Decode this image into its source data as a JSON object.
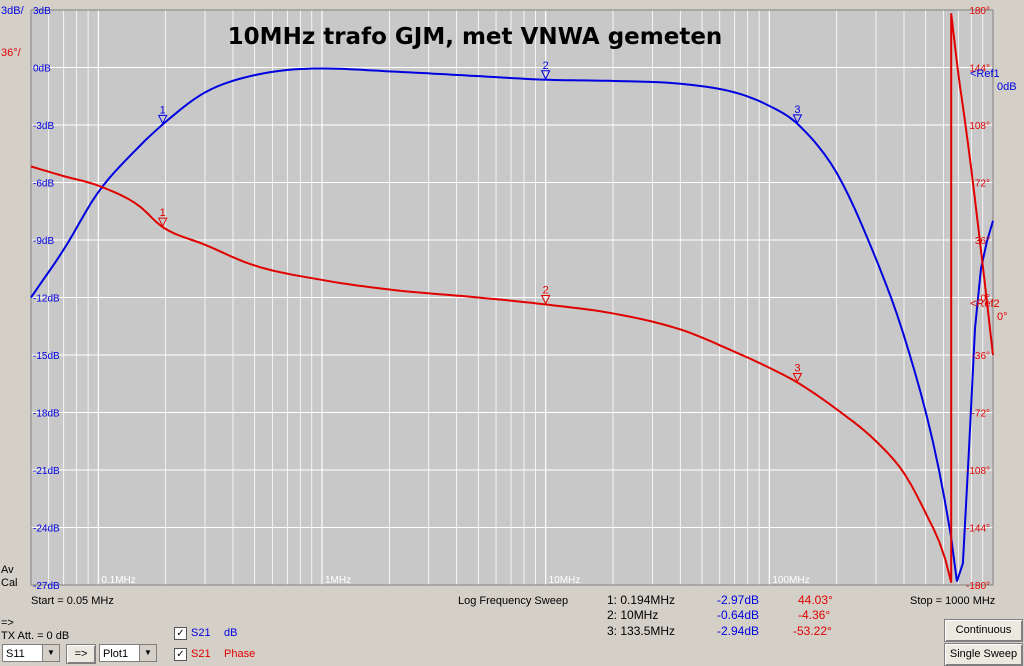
{
  "chart_data": {
    "type": "line",
    "title": "10MHz trafo GJM, met VNWA gemeten",
    "x_scale": "log",
    "xlim_mhz": [
      0.05,
      1000
    ],
    "x_ticks": [
      {
        "v": 0.1,
        "label": "0.1MHz"
      },
      {
        "v": 1,
        "label": "1MHz"
      },
      {
        "v": 10,
        "label": "10MHz"
      },
      {
        "v": 100,
        "label": "100MHz"
      }
    ],
    "left_axis": {
      "unit_label": "3dB/",
      "ylim": [
        -27,
        3
      ],
      "ticks": [
        "3dB",
        "0dB",
        "-3dB",
        "-6dB",
        "-9dB",
        "-12dB",
        "-15dB",
        "-18dB",
        "-21dB",
        "-24dB",
        "-27dB"
      ]
    },
    "right_axis": {
      "unit_label": "36°/",
      "ylim": [
        -180,
        180
      ],
      "ticks": [
        "180°",
        "144°",
        "108°",
        "72°",
        "36°",
        "0°",
        "-36°",
        "-72°",
        "-108°",
        "-144°",
        "-180°"
      ]
    },
    "ref1": {
      "label": "<Ref1",
      "value": "0dB"
    },
    "ref2": {
      "label": "<Ref2",
      "value": "0°"
    },
    "series": [
      {
        "name": "S21 dB",
        "axis": "left",
        "color": "#0000e0",
        "x": [
          0.05,
          0.07,
          0.1,
          0.15,
          0.194,
          0.3,
          0.5,
          1,
          2,
          5,
          10,
          20,
          40,
          70,
          100,
          133.5,
          200,
          300,
          400,
          550,
          650,
          700,
          750,
          800,
          850,
          900,
          1000
        ],
        "y": [
          -12,
          -9.5,
          -6.5,
          -4.2,
          -2.97,
          -1.3,
          -0.4,
          -0.05,
          -0.2,
          -0.45,
          -0.64,
          -0.7,
          -0.85,
          -1.3,
          -2,
          -2.94,
          -5.5,
          -10,
          -14,
          -20,
          -24.5,
          -27,
          -24.5,
          -17,
          -12,
          -10,
          -8
        ]
      },
      {
        "name": "S21 Phase",
        "axis": "right",
        "color": "#e00000",
        "x": [
          0.05,
          0.07,
          0.1,
          0.15,
          0.194,
          0.3,
          0.5,
          1,
          2,
          5,
          10,
          20,
          40,
          70,
          100,
          133.5,
          200,
          300,
          400,
          500,
          600,
          649,
          650,
          700,
          750,
          800,
          900,
          1000
        ],
        "y": [
          82,
          76,
          70,
          58,
          44.03,
          33,
          20,
          11,
          5,
          0,
          -4.36,
          -10,
          -20,
          -34,
          -44,
          -53.22,
          -70,
          -90,
          -110,
          -135,
          -160,
          -178,
          178,
          140,
          110,
          80,
          20,
          -36
        ]
      }
    ],
    "markers": [
      {
        "id": "1",
        "x": 0.194,
        "db": -2.97,
        "phase": 44.03
      },
      {
        "id": "2",
        "x": 10,
        "db": -0.64,
        "phase": -4.36
      },
      {
        "id": "3",
        "x": 133.5,
        "db": -2.94,
        "phase": -53.22
      }
    ],
    "footer": {
      "start": "Start = 0.05 MHz",
      "sweep": "Log Frequency Sweep",
      "stop": "Stop = 1000 MHz"
    },
    "marker_table": [
      {
        "freq": "1: 0.194MHz",
        "db": "-2.97dB",
        "phase": "44.03°"
      },
      {
        "freq": "2: 10MHz",
        "db": "-0.64dB",
        "phase": "-4.36°"
      },
      {
        "freq": "3: 133.5MHz",
        "db": "-2.94dB",
        "phase": "-53.22°"
      }
    ],
    "side_labels": {
      "av": "Av",
      "cal": "Cal"
    }
  },
  "colors": {
    "db": "#0000e0",
    "phase": "#e00000",
    "plot_bg": "#c8c8c8",
    "grid": "#ffffff"
  },
  "controls": {
    "arrow_top": "=>",
    "tx_att": "TX Att. = 0 dB",
    "trace_select": "S11",
    "transfer_btn": "=>",
    "plot_select": "Plot1",
    "trace1": {
      "param": "S21",
      "type": "dB",
      "checked": "✓"
    },
    "trace2": {
      "param": "S21",
      "type": "Phase",
      "checked": "✓"
    },
    "continuous_btn": "Continuous",
    "single_sweep_btn": "Single Sweep"
  }
}
